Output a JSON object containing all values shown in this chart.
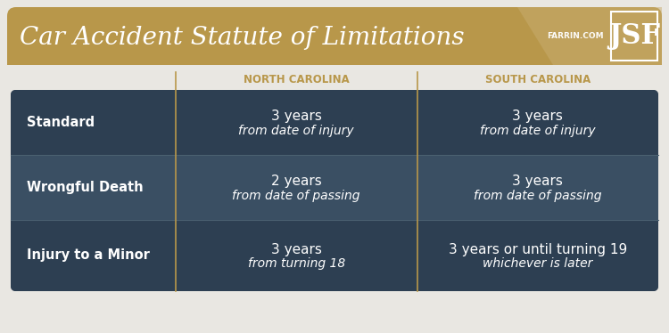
{
  "title": "Car Accident Statute of Limitations",
  "logo_text": "JSF",
  "logo_sub": "FARRIN.COM",
  "header_bg": "#b8974a",
  "header_bg_dark": "#a07c35",
  "table_bg": "#2d3f52",
  "table_alt_bg": "#3a4f63",
  "outer_bg": "#e9e7e2",
  "divider_color": "#b8974a",
  "header_text_color": "#b8974a",
  "row_label_color": "#ffffff",
  "cell_text_color": "#ffffff",
  "col_headers": [
    "NORTH CAROLINA",
    "SOUTH CAROLINA"
  ],
  "row_labels": [
    "Standard",
    "Wrongful Death",
    "Injury to a Minor"
  ],
  "nc_main": [
    "3 years",
    "2 years",
    "3 years"
  ],
  "nc_sub": [
    "from date of injury",
    "from date of passing",
    "from turning 18"
  ],
  "sc_main": [
    "3 years",
    "3 years",
    "3 years or until turning 19"
  ],
  "sc_sub": [
    "from date of injury",
    "from date of passing",
    "whichever is later"
  ],
  "title_color": "#ffffff",
  "title_fontsize": 20,
  "col_header_fontsize": 8.5,
  "row_label_fontsize": 10.5,
  "cell_main_fontsize": 11,
  "cell_sub_fontsize": 10
}
